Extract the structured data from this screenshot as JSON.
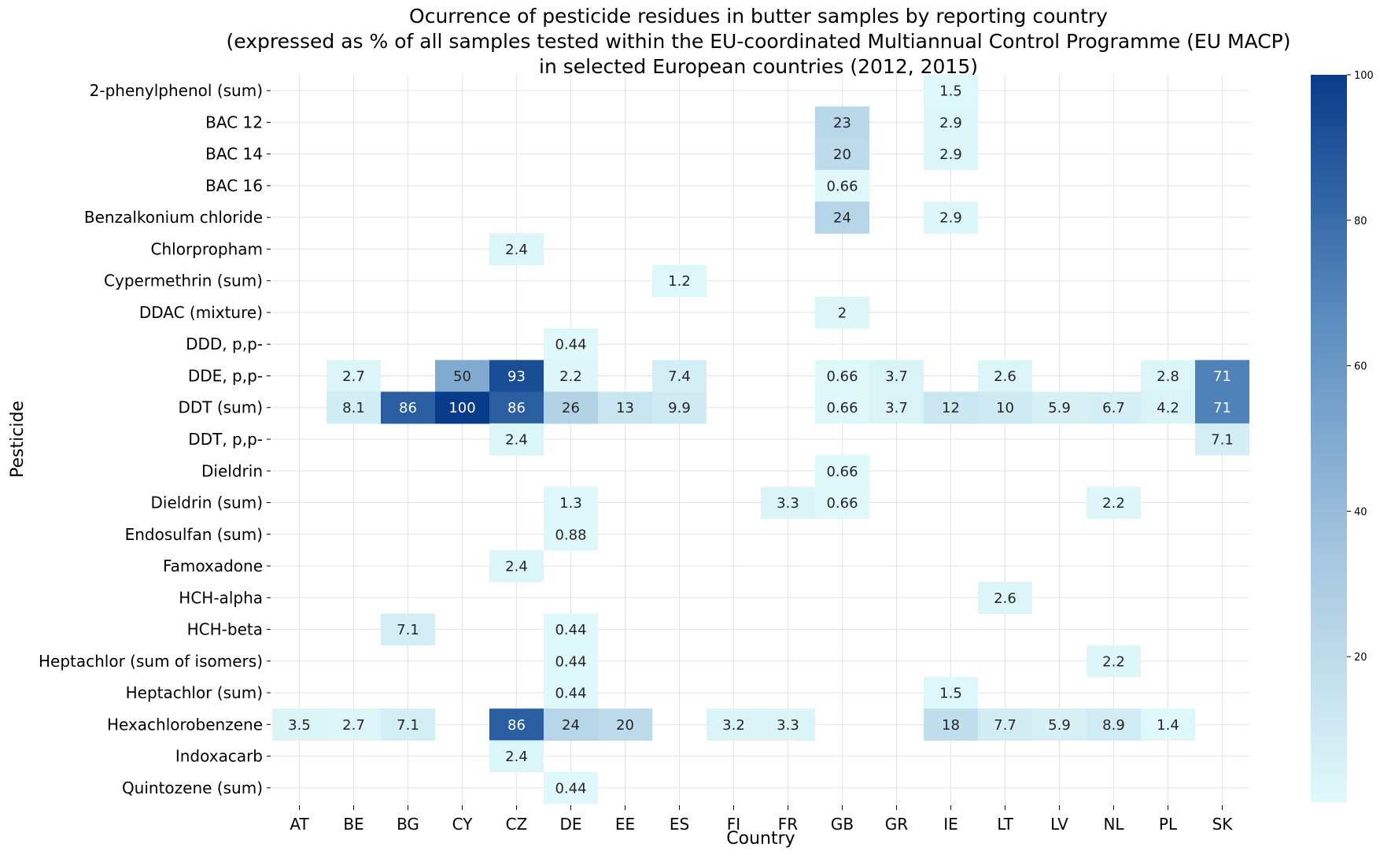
{
  "chart_data": {
    "type": "heatmap",
    "title": [
      "Ocurrence of pesticide residues in butter samples by reporting country",
      "(expressed as % of all samples tested within the EU-coordinated Multiannual Control Programme (EU MACP)",
      "in selected European countries (2012, 2015)"
    ],
    "xlabel": "Country",
    "ylabel": "Pesticide",
    "x": [
      "AT",
      "BE",
      "BG",
      "CY",
      "CZ",
      "DE",
      "EE",
      "ES",
      "FI",
      "FR",
      "GB",
      "GR",
      "IE",
      "LT",
      "LV",
      "NL",
      "PL",
      "SK"
    ],
    "y": [
      "2-phenylphenol (sum)",
      "BAC 12",
      "BAC 14",
      "BAC 16",
      "Benzalkonium chloride",
      "Chlorpropham",
      "Cypermethrin (sum)",
      "DDAC (mixture)",
      "DDD, p,p-",
      "DDE, p,p-",
      "DDT (sum)",
      "DDT, p,p-",
      "Dieldrin",
      "Dieldrin (sum)",
      "Endosulfan (sum)",
      "Famoxadone",
      "HCH-alpha",
      "HCH-beta",
      "Heptachlor (sum of isomers)",
      "Heptachlor (sum)",
      "Hexachlorobenzene",
      "Indoxacarb",
      "Quintozene (sum)"
    ],
    "cells": [
      {
        "y": "2-phenylphenol (sum)",
        "x": "IE",
        "value": 1.5,
        "label": "1.5"
      },
      {
        "y": "BAC 12",
        "x": "GB",
        "value": 23,
        "label": "23"
      },
      {
        "y": "BAC 12",
        "x": "IE",
        "value": 2.9,
        "label": "2.9"
      },
      {
        "y": "BAC 14",
        "x": "GB",
        "value": 20,
        "label": "20"
      },
      {
        "y": "BAC 14",
        "x": "IE",
        "value": 2.9,
        "label": "2.9"
      },
      {
        "y": "BAC 16",
        "x": "GB",
        "value": 0.66,
        "label": "0.66"
      },
      {
        "y": "Benzalkonium chloride",
        "x": "GB",
        "value": 24,
        "label": "24"
      },
      {
        "y": "Benzalkonium chloride",
        "x": "IE",
        "value": 2.9,
        "label": "2.9"
      },
      {
        "y": "Chlorpropham",
        "x": "CZ",
        "value": 2.4,
        "label": "2.4"
      },
      {
        "y": "Cypermethrin (sum)",
        "x": "ES",
        "value": 1.2,
        "label": "1.2"
      },
      {
        "y": "DDAC (mixture)",
        "x": "GB",
        "value": 2,
        "label": "2"
      },
      {
        "y": "DDD, p,p-",
        "x": "DE",
        "value": 0.44,
        "label": "0.44"
      },
      {
        "y": "DDE, p,p-",
        "x": "BE",
        "value": 2.7,
        "label": "2.7"
      },
      {
        "y": "DDE, p,p-",
        "x": "CY",
        "value": 50,
        "label": "50"
      },
      {
        "y": "DDE, p,p-",
        "x": "CZ",
        "value": 93,
        "label": "93"
      },
      {
        "y": "DDE, p,p-",
        "x": "DE",
        "value": 2.2,
        "label": "2.2"
      },
      {
        "y": "DDE, p,p-",
        "x": "ES",
        "value": 7.4,
        "label": "7.4"
      },
      {
        "y": "DDE, p,p-",
        "x": "GB",
        "value": 0.66,
        "label": "0.66"
      },
      {
        "y": "DDE, p,p-",
        "x": "GR",
        "value": 3.7,
        "label": "3.7"
      },
      {
        "y": "DDE, p,p-",
        "x": "LT",
        "value": 2.6,
        "label": "2.6"
      },
      {
        "y": "DDE, p,p-",
        "x": "PL",
        "value": 2.8,
        "label": "2.8"
      },
      {
        "y": "DDE, p,p-",
        "x": "SK",
        "value": 71,
        "label": "71"
      },
      {
        "y": "DDT (sum)",
        "x": "BE",
        "value": 8.1,
        "label": "8.1"
      },
      {
        "y": "DDT (sum)",
        "x": "BG",
        "value": 86,
        "label": "86"
      },
      {
        "y": "DDT (sum)",
        "x": "CY",
        "value": 100,
        "label": "100"
      },
      {
        "y": "DDT (sum)",
        "x": "CZ",
        "value": 86,
        "label": "86"
      },
      {
        "y": "DDT (sum)",
        "x": "DE",
        "value": 26,
        "label": "26"
      },
      {
        "y": "DDT (sum)",
        "x": "EE",
        "value": 13,
        "label": "13"
      },
      {
        "y": "DDT (sum)",
        "x": "ES",
        "value": 9.9,
        "label": "9.9"
      },
      {
        "y": "DDT (sum)",
        "x": "GB",
        "value": 0.66,
        "label": "0.66"
      },
      {
        "y": "DDT (sum)",
        "x": "GR",
        "value": 3.7,
        "label": "3.7"
      },
      {
        "y": "DDT (sum)",
        "x": "IE",
        "value": 12,
        "label": "12"
      },
      {
        "y": "DDT (sum)",
        "x": "LT",
        "value": 10,
        "label": "10"
      },
      {
        "y": "DDT (sum)",
        "x": "LV",
        "value": 5.9,
        "label": "5.9"
      },
      {
        "y": "DDT (sum)",
        "x": "NL",
        "value": 6.7,
        "label": "6.7"
      },
      {
        "y": "DDT (sum)",
        "x": "PL",
        "value": 4.2,
        "label": "4.2"
      },
      {
        "y": "DDT (sum)",
        "x": "SK",
        "value": 71,
        "label": "71"
      },
      {
        "y": "DDT, p,p-",
        "x": "CZ",
        "value": 2.4,
        "label": "2.4"
      },
      {
        "y": "DDT, p,p-",
        "x": "SK",
        "value": 7.1,
        "label": "7.1"
      },
      {
        "y": "Dieldrin",
        "x": "GB",
        "value": 0.66,
        "label": "0.66"
      },
      {
        "y": "Dieldrin (sum)",
        "x": "DE",
        "value": 1.3,
        "label": "1.3"
      },
      {
        "y": "Dieldrin (sum)",
        "x": "FR",
        "value": 3.3,
        "label": "3.3"
      },
      {
        "y": "Dieldrin (sum)",
        "x": "GB",
        "value": 0.66,
        "label": "0.66"
      },
      {
        "y": "Dieldrin (sum)",
        "x": "NL",
        "value": 2.2,
        "label": "2.2"
      },
      {
        "y": "Endosulfan (sum)",
        "x": "DE",
        "value": 0.88,
        "label": "0.88"
      },
      {
        "y": "Famoxadone",
        "x": "CZ",
        "value": 2.4,
        "label": "2.4"
      },
      {
        "y": "HCH-alpha",
        "x": "LT",
        "value": 2.6,
        "label": "2.6"
      },
      {
        "y": "HCH-beta",
        "x": "BG",
        "value": 7.1,
        "label": "7.1"
      },
      {
        "y": "HCH-beta",
        "x": "DE",
        "value": 0.44,
        "label": "0.44"
      },
      {
        "y": "Heptachlor (sum of isomers)",
        "x": "DE",
        "value": 0.44,
        "label": "0.44"
      },
      {
        "y": "Heptachlor (sum of isomers)",
        "x": "NL",
        "value": 2.2,
        "label": "2.2"
      },
      {
        "y": "Heptachlor (sum)",
        "x": "DE",
        "value": 0.44,
        "label": "0.44"
      },
      {
        "y": "Heptachlor (sum)",
        "x": "IE",
        "value": 1.5,
        "label": "1.5"
      },
      {
        "y": "Hexachlorobenzene",
        "x": "AT",
        "value": 3.5,
        "label": "3.5"
      },
      {
        "y": "Hexachlorobenzene",
        "x": "BE",
        "value": 2.7,
        "label": "2.7"
      },
      {
        "y": "Hexachlorobenzene",
        "x": "BG",
        "value": 7.1,
        "label": "7.1"
      },
      {
        "y": "Hexachlorobenzene",
        "x": "CZ",
        "value": 86,
        "label": "86"
      },
      {
        "y": "Hexachlorobenzene",
        "x": "DE",
        "value": 24,
        "label": "24"
      },
      {
        "y": "Hexachlorobenzene",
        "x": "EE",
        "value": 20,
        "label": "20"
      },
      {
        "y": "Hexachlorobenzene",
        "x": "FI",
        "value": 3.2,
        "label": "3.2"
      },
      {
        "y": "Hexachlorobenzene",
        "x": "FR",
        "value": 3.3,
        "label": "3.3"
      },
      {
        "y": "Hexachlorobenzene",
        "x": "IE",
        "value": 18,
        "label": "18"
      },
      {
        "y": "Hexachlorobenzene",
        "x": "LT",
        "value": 7.7,
        "label": "7.7"
      },
      {
        "y": "Hexachlorobenzene",
        "x": "LV",
        "value": 5.9,
        "label": "5.9"
      },
      {
        "y": "Hexachlorobenzene",
        "x": "NL",
        "value": 8.9,
        "label": "8.9"
      },
      {
        "y": "Hexachlorobenzene",
        "x": "PL",
        "value": 1.4,
        "label": "1.4"
      },
      {
        "y": "Indoxacarb",
        "x": "CZ",
        "value": 2.4,
        "label": "2.4"
      },
      {
        "y": "Quintozene (sum)",
        "x": "DE",
        "value": 0.44,
        "label": "0.44"
      }
    ],
    "colorbar": {
      "range": [
        0,
        100
      ],
      "ticks": [
        20,
        40,
        60,
        80,
        100
      ],
      "colors": [
        "#e0f9fb",
        "#a6c7e0",
        "#5a8cbf",
        "#083c8a"
      ]
    },
    "grid": true
  }
}
